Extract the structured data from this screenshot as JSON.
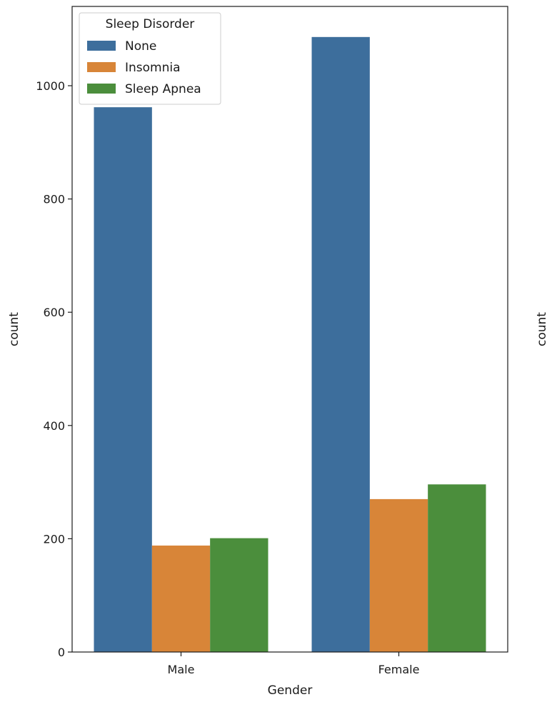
{
  "chart_data": {
    "type": "bar",
    "xlabel": "Gender",
    "ylabel": "count",
    "categories": [
      "Male",
      "Female"
    ],
    "series": [
      {
        "name": "None",
        "values": [
          962,
          1086
        ],
        "color": "#3d6e9c"
      },
      {
        "name": "Insomnia",
        "values": [
          188,
          270
        ],
        "color": "#d88538"
      },
      {
        "name": "Sleep Apnea",
        "values": [
          201,
          296
        ],
        "color": "#4b8e3c"
      }
    ],
    "ylim": [
      0,
      1140
    ],
    "yticks": [
      0,
      200,
      400,
      600,
      800,
      1000
    ],
    "grid": false,
    "legend": {
      "title": "Sleep Disorder",
      "placement": "top-left"
    },
    "second_panel_ylabel": "count"
  }
}
